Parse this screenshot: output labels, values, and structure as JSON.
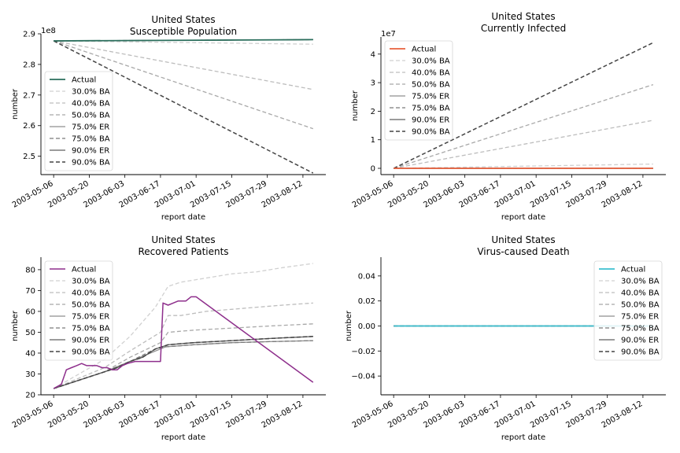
{
  "chart_data": [
    {
      "type": "line",
      "title": "United States",
      "subtitle": "Susceptible Population",
      "xlabel": "report date",
      "ylabel": "number",
      "offset_label": "1e8",
      "x_ticks": [
        "2003-05-06",
        "2003-05-20",
        "2003-06-03",
        "2003-06-17",
        "2003-07-01",
        "2003-07-15",
        "2003-07-29",
        "2003-08-12"
      ],
      "y_ticks": [
        "2.5",
        "2.6",
        "2.7",
        "2.8",
        "2.9"
      ],
      "y_tick_values": [
        2.5,
        2.6,
        2.7,
        2.8,
        2.9
      ],
      "ylim": [
        2.44,
        2.9
      ],
      "legend_position": "lower-left",
      "series": [
        {
          "name": "Actual",
          "color": "#2a6e5c",
          "style": "solid",
          "width": 1.8,
          "values": [
            [
              0,
              2.877
            ],
            [
              102,
              2.881
            ]
          ]
        },
        {
          "name": "30.0% BA",
          "color": "#d0d0d0",
          "style": "dashed",
          "width": 1.3,
          "values": [
            [
              0,
              2.877
            ],
            [
              102,
              2.866
            ]
          ]
        },
        {
          "name": "40.0% BA",
          "color": "#bdbdbd",
          "style": "dashed",
          "width": 1.3,
          "values": [
            [
              0,
              2.877
            ],
            [
              102,
              2.718
            ]
          ]
        },
        {
          "name": "50.0% BA",
          "color": "#a8a8a8",
          "style": "dashed",
          "width": 1.3,
          "values": [
            [
              0,
              2.877
            ],
            [
              102,
              2.59
            ]
          ]
        },
        {
          "name": "75.0% ER",
          "color": "#8f8f8f",
          "style": "solid",
          "width": 1.3,
          "values": [
            [
              0,
              2.877
            ],
            [
              102,
              2.881
            ]
          ]
        },
        {
          "name": "75.0% BA",
          "color": "#7b7b7b",
          "style": "dashed",
          "width": 1.3,
          "values": [
            [
              0,
              2.877
            ],
            [
              102,
              2.881
            ]
          ]
        },
        {
          "name": "90.0% ER",
          "color": "#5f5f5f",
          "style": "solid",
          "width": 1.3,
          "values": [
            [
              0,
              2.877
            ],
            [
              102,
              2.881
            ]
          ]
        },
        {
          "name": "90.0% BA",
          "color": "#444444",
          "style": "dashed",
          "width": 1.5,
          "values": [
            [
              0,
              2.877
            ],
            [
              102,
              2.445
            ]
          ]
        }
      ]
    },
    {
      "type": "line",
      "title": "United States",
      "subtitle": "Currently Infected",
      "xlabel": "report date",
      "ylabel": "number",
      "offset_label": "1e7",
      "x_ticks": [
        "2003-05-06",
        "2003-05-20",
        "2003-06-03",
        "2003-06-17",
        "2003-07-01",
        "2003-07-15",
        "2003-07-29",
        "2003-08-12"
      ],
      "y_ticks": [
        "0",
        "1",
        "2",
        "3",
        "4"
      ],
      "y_tick_values": [
        0,
        1,
        2,
        3,
        4
      ],
      "ylim": [
        -0.22,
        4.6
      ],
      "legend_position": "upper-left",
      "series": [
        {
          "name": "Actual",
          "color": "#e8603c",
          "style": "solid",
          "width": 1.8,
          "values": [
            [
              0,
              0
            ],
            [
              102,
              0
            ]
          ]
        },
        {
          "name": "30.0% BA",
          "color": "#d0d0d0",
          "style": "dashed",
          "width": 1.3,
          "values": [
            [
              0,
              0
            ],
            [
              102,
              0.15
            ]
          ]
        },
        {
          "name": "40.0% BA",
          "color": "#bdbdbd",
          "style": "dashed",
          "width": 1.3,
          "values": [
            [
              0,
              0
            ],
            [
              102,
              1.68
            ]
          ]
        },
        {
          "name": "50.0% BA",
          "color": "#a8a8a8",
          "style": "dashed",
          "width": 1.3,
          "values": [
            [
              0,
              0
            ],
            [
              102,
              2.93
            ]
          ]
        },
        {
          "name": "75.0% ER",
          "color": "#8f8f8f",
          "style": "solid",
          "width": 1.3,
          "values": [
            [
              0,
              0
            ],
            [
              102,
              0
            ]
          ]
        },
        {
          "name": "75.0% BA",
          "color": "#7b7b7b",
          "style": "dashed",
          "width": 1.3,
          "values": [
            [
              0,
              0
            ],
            [
              102,
              0
            ]
          ]
        },
        {
          "name": "90.0% ER",
          "color": "#5f5f5f",
          "style": "solid",
          "width": 1.3,
          "values": [
            [
              0,
              0
            ],
            [
              102,
              0
            ]
          ]
        },
        {
          "name": "90.0% BA",
          "color": "#444444",
          "style": "dashed",
          "width": 1.5,
          "values": [
            [
              0,
              0
            ],
            [
              102,
              4.4
            ]
          ]
        }
      ]
    },
    {
      "type": "line",
      "title": "United States",
      "subtitle": "Recovered Patients",
      "xlabel": "report date",
      "ylabel": "number",
      "offset_label": "",
      "x_ticks": [
        "2003-05-06",
        "2003-05-20",
        "2003-06-03",
        "2003-06-17",
        "2003-07-01",
        "2003-07-15",
        "2003-07-29",
        "2003-08-12"
      ],
      "y_ticks": [
        "20",
        "30",
        "40",
        "50",
        "60",
        "70",
        "80"
      ],
      "y_tick_values": [
        20,
        30,
        40,
        50,
        60,
        70,
        80
      ],
      "ylim": [
        20,
        86
      ],
      "legend_position": "upper-left",
      "series": [
        {
          "name": "Actual",
          "color": "#8e2f8c",
          "style": "solid",
          "width": 1.5,
          "values": [
            [
              0,
              23
            ],
            [
              3,
              25
            ],
            [
              5,
              32
            ],
            [
              7,
              33
            ],
            [
              9,
              34
            ],
            [
              11,
              35
            ],
            [
              13,
              34
            ],
            [
              17,
              34
            ],
            [
              19,
              33
            ],
            [
              21,
              33
            ],
            [
              23,
              32
            ],
            [
              25,
              32
            ],
            [
              27,
              34
            ],
            [
              29,
              35
            ],
            [
              32,
              36
            ],
            [
              42,
              36
            ],
            [
              43,
              64
            ],
            [
              45,
              63
            ],
            [
              47,
              64
            ],
            [
              49,
              65
            ],
            [
              52,
              65
            ],
            [
              54,
              67
            ],
            [
              56,
              67
            ],
            [
              102,
              26
            ]
          ]
        },
        {
          "name": "30.0% BA",
          "color": "#d0d0d0",
          "style": "dashed",
          "width": 1.3,
          "values": [
            [
              0,
              23
            ],
            [
              10,
              30
            ],
            [
              20,
              37
            ],
            [
              30,
              48
            ],
            [
              40,
              62
            ],
            [
              45,
              72
            ],
            [
              50,
              74
            ],
            [
              60,
              76
            ],
            [
              70,
              78
            ],
            [
              80,
              79
            ],
            [
              90,
              81
            ],
            [
              102,
              83
            ]
          ]
        },
        {
          "name": "40.0% BA",
          "color": "#bdbdbd",
          "style": "dashed",
          "width": 1.3,
          "values": [
            [
              0,
              23
            ],
            [
              10,
              28
            ],
            [
              20,
              33
            ],
            [
              30,
              41
            ],
            [
              42,
              50
            ],
            [
              45,
              58
            ],
            [
              50,
              58
            ],
            [
              60,
              60
            ],
            [
              70,
              61
            ],
            [
              80,
              62
            ],
            [
              90,
              63
            ],
            [
              102,
              64
            ]
          ]
        },
        {
          "name": "50.0% BA",
          "color": "#a8a8a8",
          "style": "dashed",
          "width": 1.3,
          "values": [
            [
              0,
              23
            ],
            [
              10,
              27
            ],
            [
              20,
              31
            ],
            [
              30,
              38
            ],
            [
              42,
              45
            ],
            [
              45,
              50
            ],
            [
              55,
              51
            ],
            [
              70,
              52
            ],
            [
              85,
              53
            ],
            [
              102,
              54
            ]
          ]
        },
        {
          "name": "75.0% ER",
          "color": "#8f8f8f",
          "style": "solid",
          "width": 1.3,
          "values": [
            [
              0,
              23
            ],
            [
              10,
              27
            ],
            [
              20,
              31
            ],
            [
              30,
              36
            ],
            [
              42,
              42
            ],
            [
              44,
              43
            ],
            [
              55,
              44
            ],
            [
              70,
              45
            ],
            [
              85,
              45.5
            ],
            [
              102,
              46
            ]
          ]
        },
        {
          "name": "75.0% BA",
          "color": "#7b7b7b",
          "style": "dashed",
          "width": 1.3,
          "values": [
            [
              0,
              23
            ],
            [
              10,
              27
            ],
            [
              20,
              31
            ],
            [
              30,
              36
            ],
            [
              40,
              42
            ],
            [
              44,
              43
            ],
            [
              55,
              44
            ],
            [
              70,
              45
            ],
            [
              85,
              45.5
            ],
            [
              102,
              46
            ]
          ]
        },
        {
          "name": "90.0% ER",
          "color": "#5f5f5f",
          "style": "solid",
          "width": 1.3,
          "values": [
            [
              0,
              23
            ],
            [
              5,
              25
            ],
            [
              10,
              27
            ],
            [
              15,
              29
            ],
            [
              20,
              31
            ],
            [
              25,
              33
            ],
            [
              30,
              36
            ],
            [
              35,
              38
            ],
            [
              40,
              42
            ],
            [
              45,
              44
            ],
            [
              55,
              45
            ],
            [
              70,
              46
            ],
            [
              85,
              47
            ],
            [
              102,
              48
            ]
          ]
        },
        {
          "name": "90.0% BA",
          "color": "#444444",
          "style": "dashed",
          "width": 1.5,
          "values": [
            [
              0,
              23
            ],
            [
              5,
              25
            ],
            [
              10,
              27
            ],
            [
              15,
              29
            ],
            [
              20,
              31
            ],
            [
              25,
              33
            ],
            [
              30,
              36
            ],
            [
              35,
              38
            ],
            [
              40,
              42
            ],
            [
              45,
              44
            ],
            [
              55,
              45
            ],
            [
              70,
              46
            ],
            [
              85,
              47
            ],
            [
              102,
              48
            ]
          ]
        }
      ]
    },
    {
      "type": "line",
      "title": "United States",
      "subtitle": "Virus-caused Death",
      "xlabel": "report date",
      "ylabel": "number",
      "offset_label": "",
      "x_ticks": [
        "2003-05-06",
        "2003-05-20",
        "2003-06-03",
        "2003-06-17",
        "2003-07-01",
        "2003-07-15",
        "2003-07-29",
        "2003-08-12"
      ],
      "y_ticks": [
        "−0.04",
        "−0.02",
        "0.00",
        "0.02",
        "0.04"
      ],
      "y_tick_values": [
        -0.04,
        -0.02,
        0,
        0.02,
        0.04
      ],
      "ylim": [
        -0.055,
        0.055
      ],
      "legend_position": "upper-right",
      "series": [
        {
          "name": "Actual",
          "color": "#3bbfcf",
          "style": "solid",
          "width": 1.8,
          "values": [
            [
              0,
              0
            ],
            [
              102,
              0
            ]
          ]
        },
        {
          "name": "30.0% BA",
          "color": "#d0d0d0",
          "style": "dashed",
          "width": 1.3,
          "values": [
            [
              0,
              0
            ],
            [
              102,
              0
            ]
          ]
        },
        {
          "name": "40.0% BA",
          "color": "#bdbdbd",
          "style": "dashed",
          "width": 1.3,
          "values": [
            [
              0,
              0
            ],
            [
              102,
              0
            ]
          ]
        },
        {
          "name": "50.0% BA",
          "color": "#a8a8a8",
          "style": "dashed",
          "width": 1.3,
          "values": [
            [
              0,
              0
            ],
            [
              102,
              0
            ]
          ]
        },
        {
          "name": "75.0% ER",
          "color": "#8f8f8f",
          "style": "solid",
          "width": 1.3,
          "values": [
            [
              0,
              0
            ],
            [
              102,
              0
            ]
          ]
        },
        {
          "name": "75.0% BA",
          "color": "#7b7b7b",
          "style": "dashed",
          "width": 1.3,
          "values": [
            [
              0,
              0
            ],
            [
              102,
              0
            ]
          ]
        },
        {
          "name": "90.0% ER",
          "color": "#5f5f5f",
          "style": "solid",
          "width": 1.3,
          "values": [
            [
              0,
              0
            ],
            [
              102,
              0
            ]
          ]
        },
        {
          "name": "90.0% BA",
          "color": "#444444",
          "style": "dashed",
          "width": 1.5,
          "values": [
            [
              0,
              0
            ],
            [
              102,
              0
            ]
          ]
        }
      ]
    }
  ]
}
